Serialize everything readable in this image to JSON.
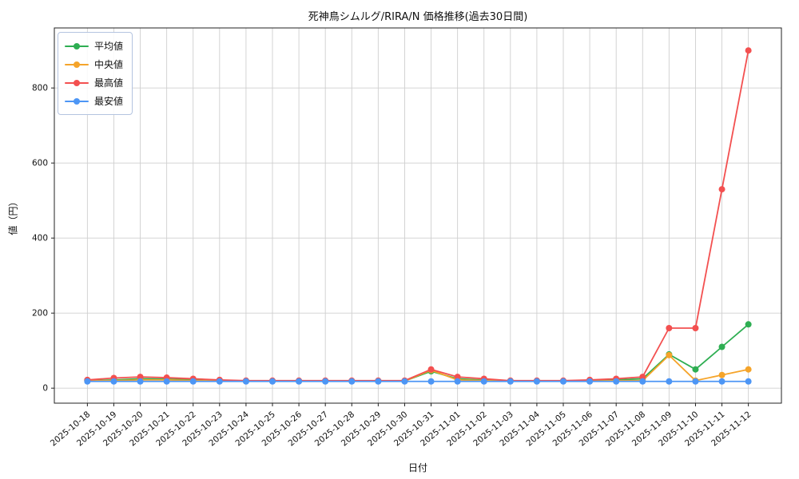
{
  "chart_data": {
    "type": "line",
    "title": "死神鳥シムルグ/RIRA/N 価格推移(過去30日間)",
    "xlabel": "日付",
    "ylabel": "値（円）",
    "x": [
      "2025-10-18",
      "2025-10-19",
      "2025-10-20",
      "2025-10-21",
      "2025-10-22",
      "2025-10-23",
      "2025-10-24",
      "2025-10-25",
      "2025-10-26",
      "2025-10-27",
      "2025-10-28",
      "2025-10-29",
      "2025-10-30",
      "2025-10-31",
      "2025-11-01",
      "2025-11-02",
      "2025-11-03",
      "2025-11-04",
      "2025-11-05",
      "2025-11-06",
      "2025-11-07",
      "2025-11-08",
      "2025-11-09",
      "2025-11-10",
      "2025-11-11",
      "2025-11-12"
    ],
    "series": [
      {
        "name": "平均値",
        "color": "#2eae52",
        "values": [
          20,
          22,
          25,
          24,
          22,
          20,
          19,
          19,
          19,
          19,
          19,
          19,
          19,
          45,
          25,
          21,
          19,
          19,
          19,
          20,
          22,
          25,
          90,
          50,
          110,
          170
        ]
      },
      {
        "name": "中央値",
        "color": "#f5a42a",
        "values": [
          20,
          20,
          22,
          22,
          20,
          20,
          19,
          19,
          19,
          19,
          19,
          19,
          19,
          48,
          22,
          20,
          19,
          19,
          19,
          19,
          20,
          20,
          88,
          20,
          35,
          50
        ]
      },
      {
        "name": "最高値",
        "color": "#f35050",
        "values": [
          22,
          27,
          30,
          28,
          25,
          22,
          20,
          20,
          20,
          20,
          20,
          20,
          20,
          50,
          30,
          25,
          20,
          20,
          20,
          22,
          25,
          30,
          160,
          160,
          530,
          900
        ]
      },
      {
        "name": "最安値",
        "color": "#4d96f5",
        "values": [
          18,
          18,
          18,
          18,
          18,
          18,
          18,
          18,
          18,
          18,
          18,
          18,
          18,
          18,
          18,
          18,
          18,
          18,
          18,
          18,
          18,
          18,
          18,
          18,
          18,
          18
        ]
      }
    ],
    "yticks": [
      0,
      200,
      400,
      600,
      800
    ],
    "ylim": [
      -40,
      960
    ],
    "grid": true,
    "legend_position": "upper-left",
    "colors": {
      "grid": "#cfcfcf",
      "axis": "#222222",
      "background": "#ffffff"
    }
  }
}
